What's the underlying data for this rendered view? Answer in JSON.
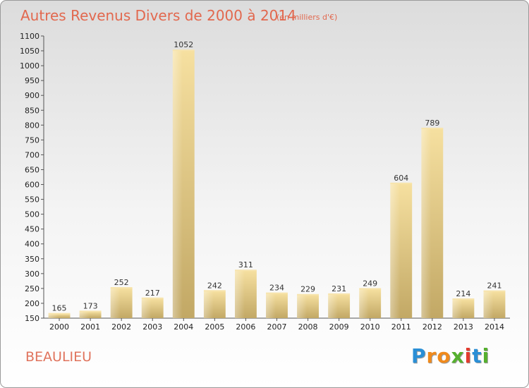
{
  "chart_data": {
    "type": "bar",
    "title": "Autres Revenus Divers de 2000 à 2014",
    "subtitle": "(en milliers d'€)",
    "categories": [
      "2000",
      "2001",
      "2002",
      "2003",
      "2004",
      "2005",
      "2006",
      "2007",
      "2008",
      "2009",
      "2010",
      "2011",
      "2012",
      "2013",
      "2014"
    ],
    "values": [
      165,
      173,
      252,
      217,
      1052,
      242,
      311,
      234,
      229,
      231,
      249,
      604,
      789,
      214,
      241
    ],
    "ylim": [
      150,
      1100
    ],
    "yticks": [
      150,
      200,
      250,
      300,
      350,
      400,
      450,
      500,
      550,
      600,
      650,
      700,
      750,
      800,
      850,
      900,
      950,
      1000,
      1050,
      1100
    ],
    "grid": false,
    "bar_color": "#e3c77f",
    "bar_highlight": "#f5dea0"
  },
  "footer": {
    "label": "BEAULIEU"
  },
  "logo": {
    "letters": [
      "P",
      "r",
      "o",
      "x",
      "i",
      "t",
      "i"
    ],
    "colors": [
      "#2a8fd6",
      "#f08a1c",
      "#f08a1c",
      "#55b02e",
      "#e23b2e",
      "#2a8fd6",
      "#55b02e"
    ]
  }
}
